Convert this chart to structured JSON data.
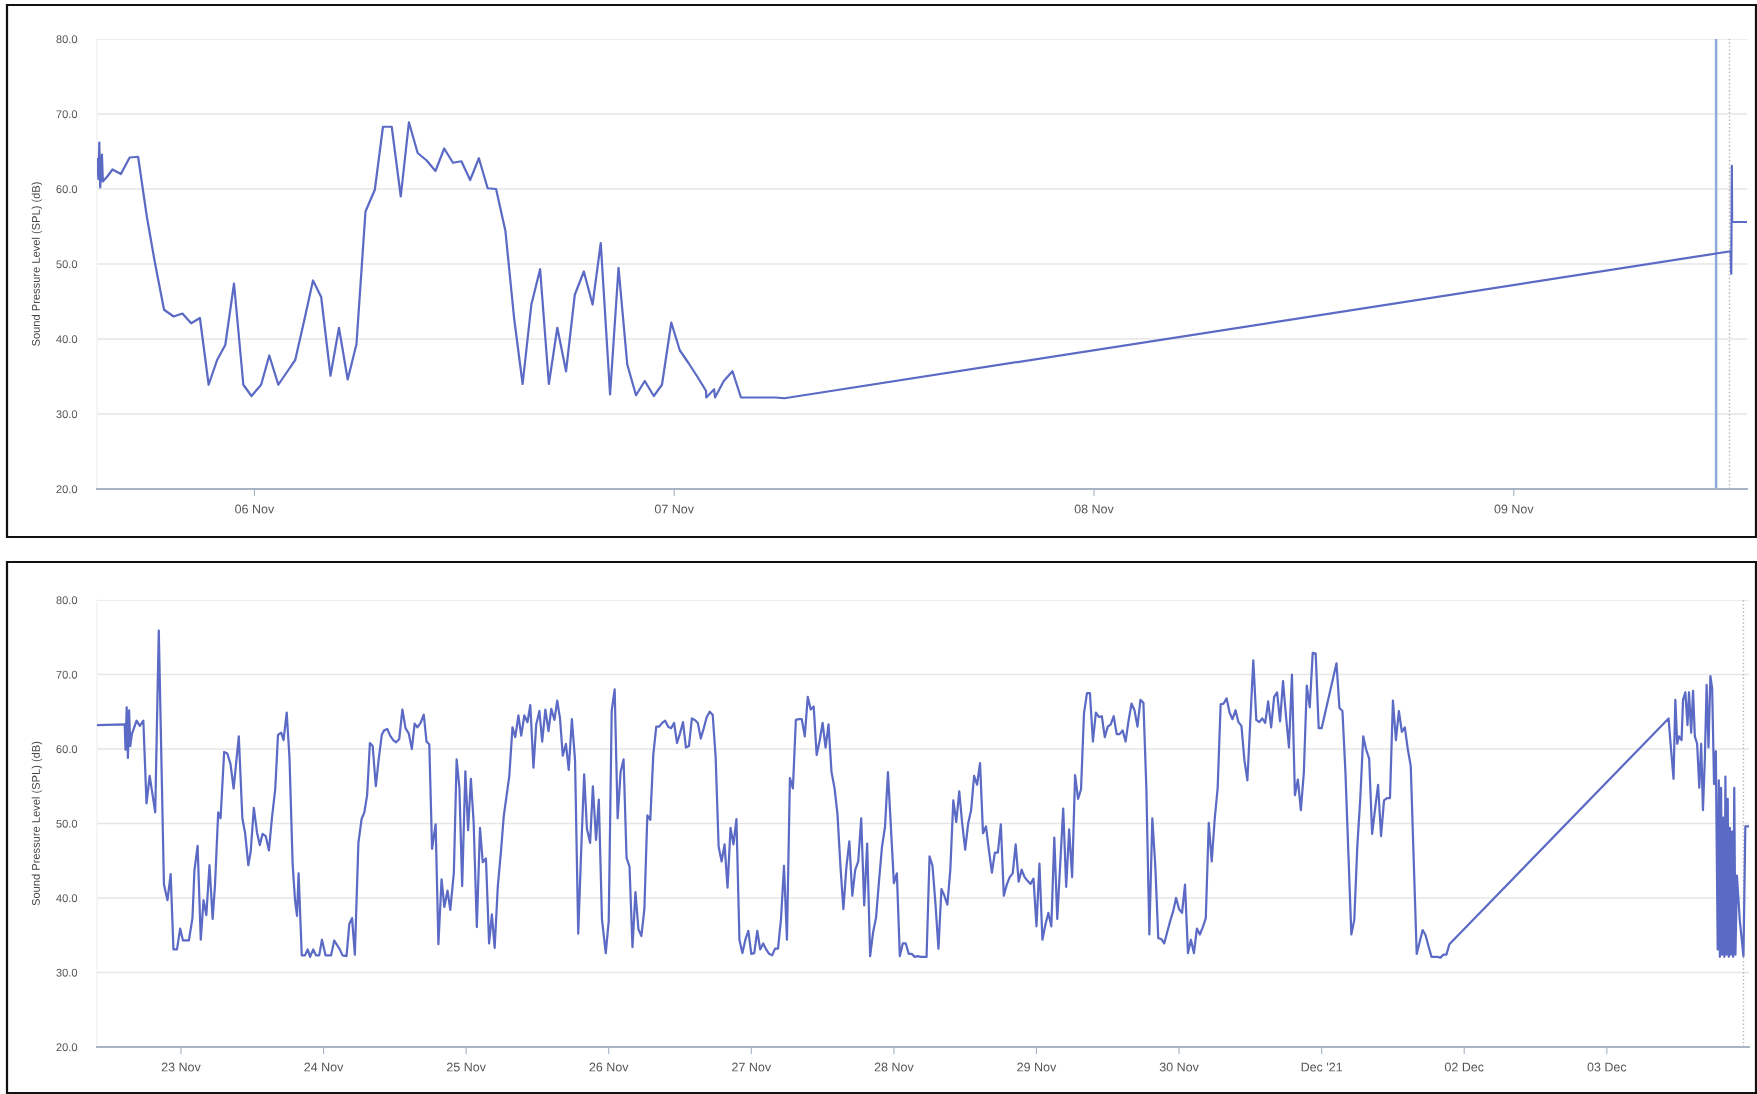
{
  "chart_data": [
    {
      "type": "line",
      "ylabel": "Sound Pressure Level (SPL) (dB)",
      "grid": "y",
      "xlim": [
        "2021-11-05T15:00",
        "2021-11-09T13:20"
      ],
      "xticks": [
        {
          "value": "2021-11-06",
          "label": "06 Nov"
        },
        {
          "value": "2021-11-07",
          "label": "07 Nov"
        },
        {
          "value": "2021-11-08",
          "label": "08 Nov"
        },
        {
          "value": "2021-11-09",
          "label": "09 Nov"
        }
      ],
      "ylim": [
        20,
        80
      ],
      "yticks": [
        {
          "value": 20,
          "label": "20.0"
        },
        {
          "value": 30,
          "label": "30.0"
        },
        {
          "value": 40,
          "label": "40.0"
        },
        {
          "value": 50,
          "label": "50.0"
        },
        {
          "value": 60,
          "label": "60.0"
        },
        {
          "value": 70,
          "label": "70.0"
        },
        {
          "value": 80,
          "label": "80.0"
        }
      ],
      "ref_lines": [
        {
          "axis": "x",
          "value": "2021-11-09T11:34",
          "color": "#8eaadb",
          "line_style": "solid"
        },
        {
          "axis": "x",
          "value": "2021-11-09T12:20",
          "color": "#b4b4b4",
          "line_style": "dotted"
        }
      ],
      "series": [
        {
          "color": "#5b6ac4",
          "x": [
            "2021-11-05T15:01",
            "2021-11-05T15:05",
            "2021-11-05T15:08",
            "2021-11-05T15:11",
            "2021-11-05T15:17",
            "2021-11-05T15:20",
            "2021-11-05T15:36",
            "2021-11-05T15:53",
            "2021-11-05T16:22",
            "2021-11-05T16:52",
            "2021-11-05T17:21",
            "2021-11-05T17:51",
            "2021-11-05T18:19",
            "2021-11-05T18:50",
            "2021-11-05T19:23",
            "2021-11-05T19:53",
            "2021-11-05T20:23",
            "2021-11-05T20:53",
            "2021-11-05T21:23",
            "2021-11-05T21:52",
            "2021-11-05T22:20",
            "2021-11-05T22:50",
            "2021-11-05T23:22",
            "2021-11-05T23:50",
            "2021-11-06T00:23",
            "2021-11-06T00:51",
            "2021-11-06T01:22",
            "2021-11-06T01:50",
            "2021-11-06T02:20",
            "2021-11-06T02:51",
            "2021-11-06T03:21",
            "2021-11-06T03:49",
            "2021-11-06T04:21",
            "2021-11-06T04:50",
            "2021-11-06T05:20",
            "2021-11-06T05:50",
            "2021-11-06T06:21",
            "2021-11-06T06:53",
            "2021-11-06T07:21",
            "2021-11-06T07:51",
            "2021-11-06T08:22",
            "2021-11-06T08:50",
            "2021-11-06T09:20",
            "2021-11-06T09:51",
            "2021-11-06T10:21",
            "2021-11-06T10:51",
            "2021-11-06T11:21",
            "2021-11-06T11:50",
            "2021-11-06T12:20",
            "2021-11-06T12:50",
            "2021-11-06T13:20",
            "2021-11-06T13:49",
            "2021-11-06T14:21",
            "2021-11-06T14:51",
            "2021-11-06T15:20",
            "2021-11-06T15:50",
            "2021-11-06T16:20",
            "2021-11-06T16:50",
            "2021-11-06T17:19",
            "2021-11-06T17:49",
            "2021-11-06T18:19",
            "2021-11-06T18:50",
            "2021-11-06T19:20",
            "2021-11-06T19:48",
            "2021-11-06T20:20",
            "2021-11-06T20:49",
            "2021-11-06T21:19",
            "2021-11-06T21:49",
            "2021-11-06T22:19",
            "2021-11-06T22:50",
            "2021-11-06T23:18",
            "2021-11-06T23:50",
            "2021-11-07T00:19",
            "2021-11-07T00:49",
            "2021-11-07T01:19",
            "2021-11-07T01:49",
            "2021-11-07T01:50",
            "2021-11-07T02:17",
            "2021-11-07T02:20",
            "2021-11-07T02:50",
            "2021-11-07T03:20",
            "2021-11-07T03:49",
            "2021-11-07T05:48",
            "2021-11-07T06:18",
            "2021-11-09T12:24",
            "2021-11-09T12:26",
            "2021-11-09T12:28",
            "2021-11-09T12:29",
            "2021-11-09T13:19"
          ],
          "values": [
            64.0,
            61.3,
            66.2,
            60.2,
            64.6,
            61.0,
            61.7,
            62.6,
            62.0,
            64.2,
            64.3,
            56.3,
            50.1,
            43.9,
            43.0,
            43.4,
            42.1,
            42.8,
            33.9,
            37.2,
            39.2,
            47.4,
            33.9,
            32.4,
            33.9,
            37.8,
            33.9,
            35.5,
            37.2,
            42.5,
            47.8,
            45.6,
            35.1,
            41.5,
            34.6,
            39.3,
            57.0,
            59.9,
            68.3,
            68.3,
            59.0,
            68.9,
            64.8,
            63.8,
            62.4,
            65.4,
            63.5,
            63.7,
            61.2,
            64.1,
            60.1,
            60.0,
            54.4,
            42.7,
            34.0,
            44.6,
            49.3,
            34.0,
            41.5,
            35.7,
            45.9,
            49.0,
            44.6,
            52.8,
            32.6,
            49.5,
            36.6,
            32.5,
            34.4,
            32.4,
            33.9,
            42.2,
            38.5,
            36.8,
            35.0,
            33.1,
            32.2,
            33.3,
            32.2,
            34.4,
            35.7,
            32.2,
            32.2,
            32.1,
            51.7,
            48.7,
            63.1,
            55.6,
            55.6
          ]
        }
      ]
    },
    {
      "type": "line",
      "ylabel": "Sound Pressure Level (SPL) (dB)",
      "grid": "y",
      "xlim": [
        "2021-11-22T09:52",
        "2021-12-03T23:56"
      ],
      "xticks": [
        {
          "value": "2021-11-23",
          "label": "23 Nov"
        },
        {
          "value": "2021-11-24",
          "label": "24 Nov"
        },
        {
          "value": "2021-11-25",
          "label": "25 Nov"
        },
        {
          "value": "2021-11-26",
          "label": "26 Nov"
        },
        {
          "value": "2021-11-27",
          "label": "27 Nov"
        },
        {
          "value": "2021-11-28",
          "label": "28 Nov"
        },
        {
          "value": "2021-11-29",
          "label": "29 Nov"
        },
        {
          "value": "2021-11-30",
          "label": "30 Nov"
        },
        {
          "value": "2021-12-01",
          "label": "Dec '21"
        },
        {
          "value": "2021-12-02",
          "label": "02 Dec"
        },
        {
          "value": "2021-12-03",
          "label": "03 Dec"
        }
      ],
      "ylim": [
        20,
        80
      ],
      "yticks": [
        {
          "value": 20,
          "label": "20.0"
        },
        {
          "value": 30,
          "label": "30.0"
        },
        {
          "value": 40,
          "label": "40.0"
        },
        {
          "value": 50,
          "label": "50.0"
        },
        {
          "value": 60,
          "label": "60.0"
        },
        {
          "value": 70,
          "label": "70.0"
        },
        {
          "value": 80,
          "label": "80.0"
        }
      ],
      "ref_lines": [
        {
          "axis": "x",
          "value": "2021-12-03T23:00",
          "color": "#b4b4b4",
          "line_style": "dotted"
        }
      ],
      "series": [
        {
          "color": "#5b6ac4",
          "x": [
            "2021-11-22T09:52",
            "2021-11-22T14:32",
            "2021-11-22T14:40",
            "2021-11-22T14:52",
            "2021-11-22T15:04",
            "2021-11-22T15:16",
            "2021-11-22T15:28",
            "2021-11-22T15:44",
            "2021-11-22T16:32",
            "2021-11-22T17:04",
            "2021-11-22T17:40",
            "2021-11-22T18:12",
            "2021-11-22T18:44",
            "2021-11-22T19:40",
            "2021-11-22T20:16",
            "2021-11-22T21:08",
            "2021-11-22T21:44",
            "2021-11-22T22:16",
            "2021-11-22T22:44",
            "2021-11-22T23:20",
            "2021-11-22T23:52",
            "2021-11-23T00:20",
            "2021-11-23T01:20",
            "2021-11-23T01:56",
            "2021-11-23T02:16",
            "2021-11-23T02:48",
            "2021-11-23T03:20",
            "2021-11-23T03:48",
            "2021-11-23T04:16",
            "2021-11-23T04:48",
            "2021-11-23T05:20",
            "2021-11-23T05:44",
            "2021-11-23T06:16",
            "2021-11-23T06:40",
            "2021-11-23T07:16",
            "2021-11-23T07:48",
            "2021-11-23T08:20",
            "2021-11-23T08:52",
            "2021-11-23T09:44",
            "2021-11-23T10:20",
            "2021-11-23T10:48",
            "2021-11-23T11:20",
            "2021-11-23T11:44",
            "2021-11-23T12:16",
            "2021-11-23T12:48",
            "2021-11-23T13:16",
            "2021-11-23T13:44",
            "2021-11-23T14:16",
            "2021-11-23T14:48",
            "2021-11-23T15:20",
            "2021-11-23T15:52",
            "2021-11-23T16:20",
            "2021-11-23T16:52",
            "2021-11-23T17:16",
            "2021-11-23T17:48",
            "2021-11-23T18:16",
            "2021-11-23T18:48",
            "2021-11-23T19:12",
            "2021-11-23T19:32",
            "2021-11-23T19:48",
            "2021-11-23T20:20",
            "2021-11-23T20:52",
            "2021-11-23T21:20",
            "2021-11-23T21:44",
            "2021-11-23T22:16",
            "2021-11-23T22:44",
            "2021-11-23T23:16",
            "2021-11-23T23:44",
            "2021-11-24T00:20",
            "2021-11-24T01:16",
            "2021-11-24T01:48",
            "2021-11-24T02:44",
            "2021-11-24T03:12",
            "2021-11-24T03:52",
            "2021-11-24T04:20",
            "2021-11-24T04:48",
            "2021-11-24T05:16",
            "2021-11-24T05:52",
            "2021-11-24T06:24",
            "2021-11-24T06:52",
            "2021-11-24T07:20",
            "2021-11-24T07:48",
            "2021-11-24T08:16",
            "2021-11-24T08:48",
            "2021-11-24T09:16",
            "2021-11-24T09:48",
            "2021-11-24T10:12",
            "2021-11-24T10:44",
            "2021-11-24T11:12",
            "2021-11-24T11:44",
            "2021-11-24T12:12",
            "2021-11-24T12:44",
            "2021-11-24T13:16",
            "2021-11-24T13:48",
            "2021-11-24T14:20",
            "2021-11-24T14:52",
            "2021-11-24T15:20",
            "2021-11-24T15:48",
            "2021-11-24T16:20",
            "2021-11-24T16:52",
            "2021-11-24T17:20",
            "2021-11-24T17:48",
            "2021-11-24T18:16",
            "2021-11-24T18:52",
            "2021-11-24T19:20",
            "2021-11-24T19:52",
            "2021-11-24T20:20",
            "2021-11-24T20:52",
            "2021-11-24T21:20",
            "2021-11-24T21:56",
            "2021-11-24T22:24",
            "2021-11-24T22:52",
            "2021-11-24T23:20",
            "2021-11-24T23:52",
            "2021-11-25T00:20",
            "2021-11-25T00:48",
            "2021-11-25T01:16",
            "2021-11-25T01:48",
            "2021-11-25T02:20",
            "2021-11-25T02:48",
            "2021-11-25T03:20",
            "2021-11-25T03:52",
            "2021-11-25T04:20",
            "2021-11-25T04:48",
            "2021-11-25T05:20",
            "2021-11-25T05:52",
            "2021-11-25T06:20",
            "2021-11-25T07:16",
            "2021-11-25T07:48",
            "2021-11-25T08:16",
            "2021-11-25T08:48",
            "2021-11-25T09:16",
            "2021-11-25T09:48",
            "2021-11-25T10:20",
            "2021-11-25T10:48",
            "2021-11-25T11:20",
            "2021-11-25T11:48",
            "2021-11-25T12:20",
            "2021-11-25T12:48",
            "2021-11-25T13:20",
            "2021-11-25T13:52",
            "2021-11-25T14:20",
            "2021-11-25T14:52",
            "2021-11-25T15:20",
            "2021-11-25T15:48",
            "2021-11-25T16:16",
            "2021-11-25T16:48",
            "2021-11-25T17:16",
            "2021-11-25T17:48",
            "2021-11-25T18:20",
            "2021-11-25T18:52",
            "2021-11-25T19:24",
            "2021-11-25T19:52",
            "2021-11-25T20:20",
            "2021-11-25T20:52",
            "2021-11-25T21:20",
            "2021-11-25T21:52",
            "2021-11-25T22:20",
            "2021-11-25T22:52",
            "2021-11-25T23:30",
            "2021-11-26T00:00",
            "2021-11-26T00:30",
            "2021-11-26T01:00",
            "2021-11-26T01:30",
            "2021-11-26T02:00",
            "2021-11-26T02:30",
            "2021-11-26T03:00",
            "2021-11-26T03:30",
            "2021-11-26T04:00",
            "2021-11-26T04:30",
            "2021-11-26T05:00",
            "2021-11-26T05:30",
            "2021-11-26T06:00",
            "2021-11-26T06:30",
            "2021-11-26T07:00",
            "2021-11-26T07:30",
            "2021-11-26T08:00",
            "2021-11-26T08:30",
            "2021-11-26T09:00",
            "2021-11-26T09:30",
            "2021-11-26T10:00",
            "2021-11-26T10:30",
            "2021-11-26T11:00",
            "2021-11-26T11:30",
            "2021-11-26T12:00",
            "2021-11-26T12:30",
            "2021-11-26T13:00",
            "2021-11-26T13:30",
            "2021-11-26T14:00",
            "2021-11-26T14:30",
            "2021-11-26T15:00",
            "2021-11-26T15:30",
            "2021-11-26T16:00",
            "2021-11-26T16:30",
            "2021-11-26T17:00",
            "2021-11-26T17:30",
            "2021-11-26T18:00",
            "2021-11-26T18:30",
            "2021-11-26T19:00",
            "2021-11-26T19:30",
            "2021-11-26T20:00",
            "2021-11-26T20:30",
            "2021-11-26T21:00",
            "2021-11-26T21:30",
            "2021-11-26T22:00",
            "2021-11-26T22:30",
            "2021-11-26T23:00",
            "2021-11-26T23:30",
            "2021-11-27T00:00",
            "2021-11-27T00:30",
            "2021-11-27T01:00",
            "2021-11-27T01:30",
            "2021-11-27T02:00",
            "2021-11-27T02:30",
            "2021-11-27T03:00",
            "2021-11-27T03:30",
            "2021-11-27T04:00",
            "2021-11-27T04:30",
            "2021-11-27T05:00",
            "2021-11-27T05:30",
            "2021-11-27T06:00",
            "2021-11-27T06:30",
            "2021-11-27T07:00",
            "2021-11-27T07:30",
            "2021-11-27T08:00",
            "2021-11-27T08:30",
            "2021-11-27T09:00",
            "2021-11-27T09:30",
            "2021-11-27T10:00",
            "2021-11-27T10:30",
            "2021-11-27T11:00",
            "2021-11-27T11:30",
            "2021-11-27T12:00",
            "2021-11-27T12:30",
            "2021-11-27T13:00",
            "2021-11-27T13:30",
            "2021-11-27T14:00",
            "2021-11-27T14:30",
            "2021-11-27T15:00",
            "2021-11-27T15:30",
            "2021-11-27T16:00",
            "2021-11-27T16:30",
            "2021-11-27T17:00",
            "2021-11-27T17:30",
            "2021-11-27T18:00",
            "2021-11-27T18:30",
            "2021-11-27T19:00",
            "2021-11-27T19:30",
            "2021-11-27T20:00",
            "2021-11-27T20:30",
            "2021-11-27T21:00",
            "2021-11-27T21:30",
            "2021-11-27T22:00",
            "2021-11-27T22:30",
            "2021-11-27T23:00",
            "2021-11-27T23:30",
            "2021-11-28T00:00",
            "2021-11-28T00:30",
            "2021-11-28T01:00",
            "2021-11-28T01:30",
            "2021-11-28T02:00",
            "2021-11-28T02:30",
            "2021-11-28T03:00",
            "2021-11-28T03:30",
            "2021-11-28T04:00",
            "2021-11-28T04:30",
            "2021-11-28T05:30",
            "2021-11-28T06:00",
            "2021-11-28T06:30",
            "2021-11-28T07:00",
            "2021-11-28T07:30",
            "2021-11-28T08:00",
            "2021-11-28T08:30",
            "2021-11-28T09:00",
            "2021-11-28T09:30",
            "2021-11-28T10:00",
            "2021-11-28T10:30",
            "2021-11-28T11:00",
            "2021-11-28T11:30",
            "2021-11-28T12:00",
            "2021-11-28T12:30",
            "2021-11-28T13:00",
            "2021-11-28T13:30",
            "2021-11-28T14:00",
            "2021-11-28T14:30",
            "2021-11-28T15:00",
            "2021-11-28T15:30",
            "2021-11-28T16:00",
            "2021-11-28T16:30",
            "2021-11-28T17:00",
            "2021-11-28T17:30",
            "2021-11-28T18:00",
            "2021-11-28T18:30",
            "2021-11-28T19:00",
            "2021-11-28T19:30",
            "2021-11-28T20:00",
            "2021-11-28T20:30",
            "2021-11-28T21:00",
            "2021-11-28T21:30",
            "2021-11-28T22:00",
            "2021-11-28T22:30",
            "2021-11-28T23:00",
            "2021-11-28T23:30",
            "2021-11-29T00:00",
            "2021-11-29T00:30",
            "2021-11-29T01:00",
            "2021-11-29T01:30",
            "2021-11-29T02:00",
            "2021-11-29T02:30",
            "2021-11-29T03:00",
            "2021-11-29T03:30",
            "2021-11-29T04:30",
            "2021-11-29T05:00",
            "2021-11-29T05:30",
            "2021-11-29T06:00",
            "2021-11-29T06:30",
            "2021-11-29T07:00",
            "2021-11-29T07:30",
            "2021-11-29T08:00",
            "2021-11-29T08:30",
            "2021-11-29T09:00",
            "2021-11-29T09:30",
            "2021-11-29T10:00",
            "2021-11-29T10:30",
            "2021-11-29T11:00",
            "2021-11-29T11:30",
            "2021-11-29T12:00",
            "2021-11-29T12:30",
            "2021-11-29T13:00",
            "2021-11-29T13:30",
            "2021-11-29T14:00",
            "2021-11-29T14:30",
            "2021-11-29T15:00",
            "2021-11-29T15:30",
            "2021-11-29T16:00",
            "2021-11-29T16:30",
            "2021-11-29T17:00",
            "2021-11-29T17:30",
            "2021-11-29T18:00",
            "2021-11-29T18:30",
            "2021-11-29T19:00",
            "2021-11-29T19:30",
            "2021-11-29T20:00",
            "2021-11-29T20:30",
            "2021-11-29T21:00",
            "2021-11-29T21:30",
            "2021-11-29T22:00",
            "2021-11-29T22:30",
            "2021-11-29T23:00",
            "2021-11-29T23:30",
            "2021-11-30T00:00",
            "2021-11-30T00:30",
            "2021-11-30T01:00",
            "2021-11-30T01:30",
            "2021-11-30T02:00",
            "2021-11-30T02:30",
            "2021-11-30T03:00",
            "2021-11-30T03:30",
            "2021-11-30T04:00",
            "2021-11-30T04:30",
            "2021-11-30T05:00",
            "2021-11-30T05:30",
            "2021-11-30T06:00",
            "2021-11-30T06:30",
            "2021-11-30T07:00",
            "2021-11-30T07:30",
            "2021-11-30T08:00",
            "2021-11-30T08:30",
            "2021-11-30T09:00",
            "2021-11-30T09:30",
            "2021-11-30T10:00",
            "2021-11-30T10:30",
            "2021-11-30T11:00",
            "2021-11-30T11:30",
            "2021-11-30T12:00",
            "2021-11-30T12:30",
            "2021-11-30T13:00",
            "2021-11-30T13:30",
            "2021-11-30T14:00",
            "2021-11-30T14:30",
            "2021-11-30T15:00",
            "2021-11-30T15:30",
            "2021-11-30T16:00",
            "2021-11-30T16:30",
            "2021-11-30T17:00",
            "2021-11-30T17:30",
            "2021-11-30T18:00",
            "2021-11-30T18:30",
            "2021-11-30T19:00",
            "2021-11-30T19:30",
            "2021-11-30T20:00",
            "2021-11-30T20:30",
            "2021-11-30T21:00",
            "2021-11-30T21:30",
            "2021-11-30T22:00",
            "2021-11-30T22:30",
            "2021-11-30T23:00",
            "2021-11-30T23:30",
            "2021-12-01T00:00",
            "2021-12-01T02:30",
            "2021-12-01T03:00",
            "2021-12-01T03:30",
            "2021-12-01T04:00",
            "2021-12-01T04:30",
            "2021-12-01T05:00",
            "2021-12-01T05:30",
            "2021-12-01T06:00",
            "2021-12-01T06:30",
            "2021-12-01T07:00",
            "2021-12-01T07:30",
            "2021-12-01T08:00",
            "2021-12-01T08:30",
            "2021-12-01T09:00",
            "2021-12-01T09:30",
            "2021-12-01T10:00",
            "2021-12-01T10:30",
            "2021-12-01T11:00",
            "2021-12-01T11:30",
            "2021-12-01T12:00",
            "2021-12-01T12:30",
            "2021-12-01T13:00",
            "2021-12-01T13:30",
            "2021-12-01T14:00",
            "2021-12-01T14:30",
            "2021-12-01T15:00",
            "2021-12-01T15:30",
            "2021-12-01T16:00",
            "2021-12-01T17:00",
            "2021-12-01T17:30",
            "2021-12-01T18:00",
            "2021-12-01T18:30",
            "2021-12-01T19:30",
            "2021-12-01T20:00",
            "2021-12-01T20:30",
            "2021-12-01T21:00",
            "2021-12-01T21:30",
            "2021-12-03T10:24",
            "2021-12-03T10:44",
            "2021-12-03T11:14",
            "2021-12-03T11:32",
            "2021-12-03T11:51",
            "2021-12-03T12:09",
            "2021-12-03T12:35",
            "2021-12-03T12:50",
            "2021-12-03T13:13",
            "2021-12-03T13:35",
            "2021-12-03T13:50",
            "2021-12-03T14:12",
            "2021-12-03T14:31",
            "2021-12-03T14:49",
            "2021-12-03T15:12",
            "2021-12-03T15:34",
            "2021-12-03T15:53",
            "2021-12-03T16:11",
            "2021-12-03T16:30",
            "2021-12-03T16:48",
            "2021-12-03T17:07",
            "2021-12-03T17:26",
            "2021-12-03T17:44",
            "2021-12-03T18:03",
            "2021-12-03T18:21",
            "2021-12-03T18:40",
            "2021-12-03T18:51",
            "2021-12-03T19:02",
            "2021-12-03T19:14",
            "2021-12-03T19:25",
            "2021-12-03T19:36",
            "2021-12-03T19:47",
            "2021-12-03T19:58",
            "2021-12-03T20:09",
            "2021-12-03T20:21",
            "2021-12-03T20:32",
            "2021-12-03T20:43",
            "2021-12-03T20:54",
            "2021-12-03T21:05",
            "2021-12-03T21:16",
            "2021-12-03T21:27",
            "2021-12-03T21:39",
            "2021-12-03T21:54",
            "2021-12-03T22:23",
            "2021-12-03T23:00",
            "2021-12-03T23:19",
            "2021-12-03T23:56"
          ],
          "values": [
            63.2,
            63.3,
            59.9,
            65.6,
            58.8,
            65.2,
            60.4,
            62.0,
            63.8,
            63.1,
            63.8,
            52.7,
            56.4,
            51.5,
            75.9,
            41.8,
            39.7,
            43.2,
            33.1,
            33.1,
            35.9,
            34.3,
            34.3,
            37.3,
            43.7,
            47.0,
            34.4,
            39.7,
            37.7,
            44.4,
            37.2,
            41.8,
            51.5,
            50.7,
            59.6,
            59.4,
            58.0,
            54.7,
            61.7,
            50.7,
            48.7,
            44.4,
            46.2,
            52.1,
            48.8,
            47.1,
            48.6,
            48.3,
            46.4,
            50.9,
            54.6,
            61.9,
            62.2,
            61.2,
            64.9,
            58.8,
            44.5,
            39.7,
            37.6,
            43.3,
            32.3,
            32.3,
            33.1,
            32.1,
            33.1,
            32.3,
            32.3,
            34.4,
            32.3,
            32.3,
            34.3,
            33.1,
            32.3,
            32.2,
            36.5,
            37.3,
            32.4,
            47.4,
            50.6,
            51.5,
            53.8,
            60.8,
            60.4,
            55.0,
            58.5,
            61.9,
            62.5,
            62.7,
            61.8,
            61.2,
            60.9,
            61.3,
            65.3,
            62.8,
            62.1,
            60.0,
            63.4,
            62.9,
            63.5,
            64.6,
            61.0,
            60.6,
            46.6,
            49.9,
            33.8,
            42.5,
            38.8,
            41.0,
            38.4,
            43.4,
            58.6,
            54.8,
            41.6,
            57.0,
            49.1,
            56.0,
            50.1,
            36.1,
            49.4,
            44.8,
            45.3,
            33.9,
            37.8,
            33.3,
            41.6,
            46.3,
            51.0,
            56.4,
            62.9,
            61.6,
            64.5,
            61.8,
            64.5,
            63.6,
            65.9,
            57.5,
            63.3,
            65.1,
            61.0,
            65.3,
            62.4,
            65.4,
            63.9,
            66.5,
            64.1,
            59.1,
            60.7,
            57.2,
            64.0,
            58.5,
            35.2,
            47.1,
            56.6,
            49.3,
            47.4,
            55.0,
            47.8,
            53.2,
            37.1,
            32.6,
            36.9,
            65.1,
            68.0,
            50.7,
            56.9,
            58.6,
            45.4,
            44.2,
            33.4,
            40.8,
            35.8,
            34.9,
            38.5,
            51.1,
            50.5,
            59.2,
            63.0,
            63.0,
            63.5,
            63.8,
            63.0,
            62.8,
            63.5,
            60.8,
            62.1,
            63.6,
            60.2,
            60.4,
            64.1,
            63.9,
            63.5,
            61.4,
            62.8,
            64.3,
            65.0,
            64.6,
            58.9,
            46.9,
            44.9,
            47.2,
            41.4,
            49.4,
            47.2,
            50.6,
            34.4,
            32.6,
            34.4,
            35.6,
            32.5,
            32.6,
            35.6,
            33.1,
            33.9,
            33.1,
            32.5,
            32.3,
            33.2,
            33.2,
            37.2,
            44.3,
            34.4,
            56.1,
            54.7,
            63.9,
            64.0,
            64.0,
            61.7,
            67.0,
            65.3,
            65.7,
            59.2,
            61.1,
            63.5,
            60.2,
            63.3,
            56.9,
            54.8,
            51.3,
            44.3,
            38.5,
            44.1,
            47.6,
            40.3,
            43.8,
            44.9,
            50.7,
            39.0,
            47.3,
            32.2,
            35.4,
            37.4,
            42.3,
            46.9,
            49.5,
            56.9,
            49.5,
            42.0,
            43.3,
            32.2,
            33.9,
            33.9,
            32.5,
            32.5,
            32.1,
            32.2,
            32.1,
            32.1,
            45.6,
            44.3,
            39.2,
            33.2,
            41.2,
            40.3,
            39.1,
            43.8,
            53.1,
            50.2,
            54.3,
            50.0,
            46.5,
            50.0,
            51.8,
            56.4,
            55.2,
            58.1,
            48.7,
            49.6,
            46.4,
            43.4,
            46.1,
            46.1,
            49.9,
            40.3,
            41.8,
            42.8,
            43.3,
            47.2,
            42.2,
            43.8,
            42.8,
            42.3,
            41.9,
            42.6,
            36.2,
            44.6,
            34.4,
            36.4,
            38.0,
            36.2,
            48.1,
            37.2,
            52.0,
            41.5,
            49.2,
            42.8,
            56.5,
            53.3,
            54.6,
            64.8,
            67.5,
            67.5,
            61.0,
            64.9,
            64.3,
            64.4,
            61.6,
            63.0,
            63.3,
            64.4,
            62.0,
            62.0,
            62.5,
            61.0,
            63.8,
            66.1,
            65.2,
            63.0,
            66.6,
            66.2,
            54.6,
            35.1,
            50.7,
            44.3,
            34.6,
            34.5,
            33.9,
            35.4,
            36.9,
            38.2,
            40.0,
            38.5,
            38.0,
            41.8,
            32.6,
            34.4,
            32.6,
            35.9,
            35.1,
            36.1,
            37.3,
            50.1,
            44.9,
            50.6,
            54.8,
            66.0,
            66.1,
            66.8,
            64.9,
            64.0,
            65.2,
            63.6,
            63.1,
            58.5,
            55.8,
            63.9,
            71.9,
            63.9,
            63.6,
            64.1,
            63.5,
            66.4,
            62.9,
            67.0,
            67.6,
            63.7,
            69.1,
            64.4,
            60.2,
            70.0,
            53.8,
            55.9,
            51.8,
            56.8,
            68.5,
            65.6,
            72.9,
            72.8,
            62.8,
            62.8,
            71.5,
            65.5,
            65.1,
            57.0,
            46.0,
            35.1,
            37.1,
            46.9,
            53.3,
            61.7,
            59.9,
            58.7,
            48.6,
            52.0,
            55.2,
            48.3,
            53.1,
            53.4,
            53.4,
            66.5,
            61.2,
            65.1,
            62.3,
            62.9,
            60.0,
            57.7,
            45.0,
            32.5,
            35.7,
            35.0,
            33.5,
            32.1,
            32.1,
            32.0,
            32.4,
            32.4,
            33.8,
            64.1,
            60.7,
            56.0,
            66.6,
            60.7,
            61.7,
            61.2,
            66.6,
            67.6,
            63.2,
            67.6,
            62.2,
            67.8,
            61.7,
            60.7,
            54.8,
            60.7,
            51.8,
            58.7,
            68.6,
            60.2,
            69.8,
            68.1,
            55.3,
            59.7,
            33.1,
            55.8,
            32.1,
            54.8,
            32.4,
            50.8,
            32.1,
            56.3,
            32.4,
            53.3,
            32.1,
            49.4,
            32.4,
            48.9,
            32.1,
            54.8,
            32.4,
            43.0,
            37.0,
            32.2,
            49.6,
            49.6
          ]
        }
      ]
    }
  ]
}
